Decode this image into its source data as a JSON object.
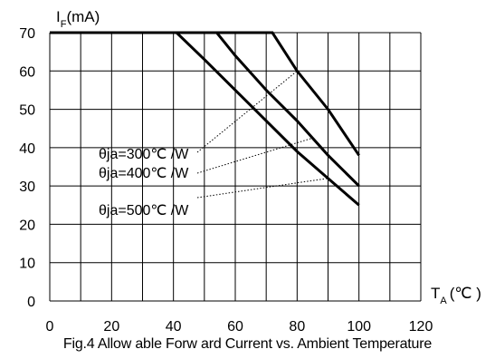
{
  "chart_data": {
    "type": "line",
    "caption": "Fig.4 Allow able Forw ard Current vs. Ambient Temperature",
    "ylabel_main": "I",
    "ylabel_sub": "F",
    "ylabel_unit": "(mA)",
    "xlabel_main": "T",
    "xlabel_sub": "A",
    "xlabel_unit": "(℃ )",
    "xlim": [
      0,
      120
    ],
    "ylim": [
      0,
      70
    ],
    "xticks": [
      0,
      20,
      40,
      60,
      80,
      100,
      120
    ],
    "yticks": [
      0,
      10,
      20,
      30,
      40,
      50,
      60,
      70
    ],
    "grid": true,
    "series": [
      {
        "name": "θja=300℃ /W",
        "x": [
          0,
          72,
          80,
          90,
          100
        ],
        "y": [
          70,
          70,
          60,
          50,
          38
        ]
      },
      {
        "name": "θja=400℃ /W",
        "x": [
          0,
          54,
          60,
          70,
          80,
          90,
          100
        ],
        "y": [
          70,
          70,
          64,
          55,
          47,
          38,
          30
        ]
      },
      {
        "name": "θja=500℃ /W",
        "x": [
          0,
          41,
          50,
          60,
          70,
          80,
          90,
          100
        ],
        "y": [
          70,
          70,
          63,
          55,
          47,
          39,
          32,
          25
        ]
      }
    ],
    "annotations": [
      {
        "text": "θja=300℃ /W",
        "series": 0
      },
      {
        "text": "θja=400℃ /W",
        "series": 1
      },
      {
        "text": "θja=500℃ /W",
        "series": 2
      }
    ]
  }
}
